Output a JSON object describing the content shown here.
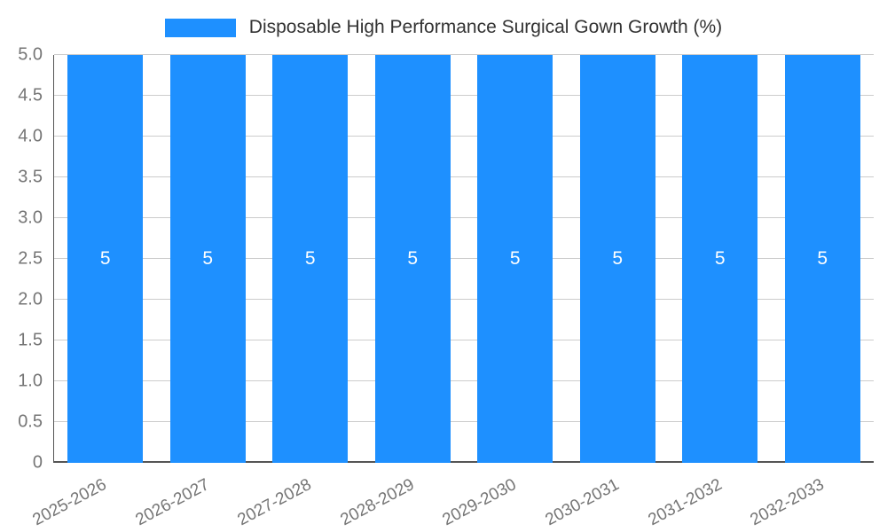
{
  "chart_data": {
    "type": "bar",
    "title": "Disposable High Performance Surgical Gown Growth (%)",
    "categories": [
      "2025-2026",
      "2026-2027",
      "2027-2028",
      "2028-2029",
      "2029-2030",
      "2030-2031",
      "2031-2032",
      "2032-2033"
    ],
    "values": [
      5,
      5,
      5,
      5,
      5,
      5,
      5,
      5
    ],
    "bar_value_labels": [
      "5",
      "5",
      "5",
      "5",
      "5",
      "5",
      "5",
      "5"
    ],
    "xlabel": "",
    "ylabel": "",
    "ylim": [
      0,
      5
    ],
    "ytick_step": 0.5,
    "yticks": [
      "0",
      "0.5",
      "1.0",
      "1.5",
      "2.0",
      "2.5",
      "3.0",
      "3.5",
      "4.0",
      "4.5",
      "5.0"
    ],
    "grid": true,
    "legend_position": "top",
    "colors": {
      "bar": "#1e90ff",
      "bar_label_text": "#ffffff",
      "axis_text": "#757575",
      "title_text": "#333333",
      "gridline": "#cccccc",
      "axis_line": "#555555",
      "background": "#ffffff"
    }
  }
}
